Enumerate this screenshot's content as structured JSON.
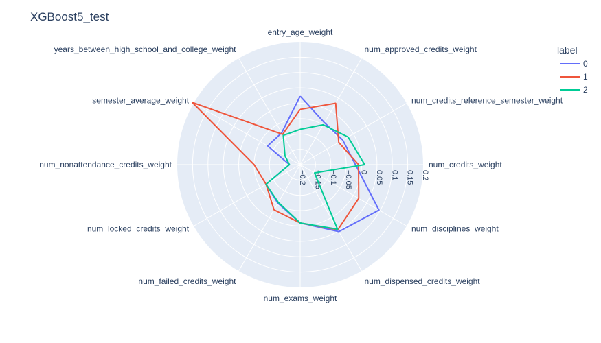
{
  "chart_data": {
    "type": "radar",
    "title": "XGBoost5_test",
    "theta": [
      "entry_age_weight",
      "num_approved_credits_weight",
      "num_credits_reference_semester_weight",
      "num_credits_weight",
      "num_disciplines_weight",
      "num_dispensed_credits_weight",
      "num_exams_weight",
      "num_failed_credits_weight",
      "num_locked_credits_weight",
      "num_nonattendance_credits_weight",
      "semester_average_weight",
      "years_between_high_school_and_college_weight"
    ],
    "radial_range": [
      -0.2,
      0.2
    ],
    "radial_ticks": [
      -0.2,
      -0.15,
      -0.1,
      -0.05,
      0,
      0.05,
      0.1,
      0.15,
      0.2
    ],
    "radial_tick_labels": [
      "−0.2",
      "−0.15",
      "−0.1",
      "−0.05",
      "0",
      "0.05",
      "0.1",
      "0.15",
      "0.2"
    ],
    "legend_title": "label",
    "series": [
      {
        "name": "0",
        "color": "#636efa",
        "values": [
          0.023,
          -0.042,
          -0.04,
          -0.02,
          0.096,
          0.052,
          -0.01,
          -0.055,
          -0.072,
          -0.165,
          -0.078,
          -0.08
        ]
      },
      {
        "name": "1",
        "color": "#ef553b",
        "values": [
          -0.02,
          0.031,
          -0.055,
          -0.01,
          0.02,
          0.045,
          -0.01,
          -0.03,
          -0.072,
          -0.05,
          0.205,
          -0.086
        ]
      },
      {
        "name": "2",
        "color": "#00cc96",
        "values": [
          -0.085,
          -0.05,
          -0.02,
          0.01,
          -0.146,
          0.043,
          -0.01,
          -0.058,
          -0.072,
          -0.165,
          -0.143,
          -0.09
        ]
      }
    ]
  }
}
